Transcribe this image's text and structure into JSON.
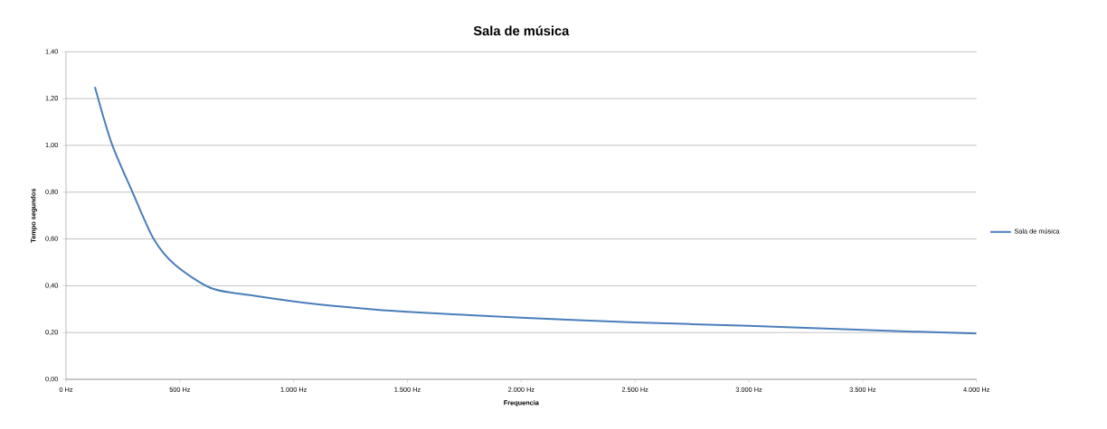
{
  "chart_data": {
    "type": "line",
    "title": "Sala de música",
    "xlabel": "Frequencia",
    "ylabel": "Tempo segundos",
    "x": [
      127,
      200,
      292,
      385,
      478,
      637,
      809,
      994,
      1166,
      1378,
      1500,
      2000,
      2500,
      3000,
      3500,
      4000
    ],
    "series": [
      {
        "name": "Sala de música",
        "color": "#4a7ebb",
        "values": [
          1.25,
          1.01,
          0.8,
          0.6,
          0.49,
          0.39,
          0.36,
          0.334,
          0.315,
          0.296,
          0.289,
          0.263,
          0.243,
          0.229,
          0.211,
          0.196
        ]
      }
    ],
    "xlim": [
      0,
      4000
    ],
    "xticks": [
      {
        "value": 0,
        "label": "0 Hz"
      },
      {
        "value": 500,
        "label": "500 Hz"
      },
      {
        "value": 1000,
        "label": "1.000 Hz"
      },
      {
        "value": 1500,
        "label": "1.500 Hz"
      },
      {
        "value": 2000,
        "label": "2.000 Hz"
      },
      {
        "value": 2500,
        "label": "2.500 Hz"
      },
      {
        "value": 3000,
        "label": "3.000 Hz"
      },
      {
        "value": 3500,
        "label": "3.500 Hz"
      },
      {
        "value": 4000,
        "label": "4.000 Hz"
      }
    ],
    "ylim": [
      0,
      1.4
    ],
    "yticks": [
      {
        "value": 0,
        "label": "0,00"
      },
      {
        "value": 0.2,
        "label": "0,20"
      },
      {
        "value": 0.4,
        "label": "0,40"
      },
      {
        "value": 0.6,
        "label": "0,60"
      },
      {
        "value": 0.8,
        "label": "0,80"
      },
      {
        "value": 1.0,
        "label": "1,00"
      },
      {
        "value": 1.2,
        "label": "1,20"
      },
      {
        "value": 1.4,
        "label": "1,40"
      }
    ],
    "grid": "y",
    "legend": "right",
    "line_style": "solid"
  }
}
